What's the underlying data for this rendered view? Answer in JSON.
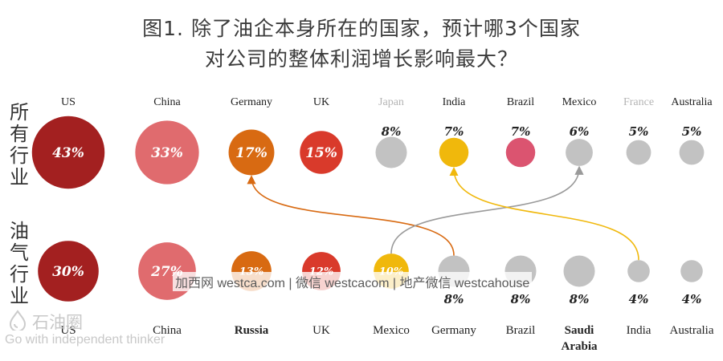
{
  "title": {
    "line1": "图1. 除了油企本身所在的国家，预计哪3个国家",
    "line2": "对公司的整体利润增长影响最大？"
  },
  "watermark_text": "加西网 westca.com | 微信 westcacom | 地产微信 westcahouse",
  "logo": {
    "name": "石油圈",
    "slogan": "Go with independent thinker"
  },
  "chart_data": {
    "type": "bubble",
    "rows": [
      {
        "label": "所有行业",
        "items": [
          {
            "country": "US",
            "value": 43,
            "show": "inside",
            "color": "#a32020",
            "label_color": "#222222"
          },
          {
            "country": "China",
            "value": 33,
            "show": "inside",
            "color": "#e06b6e",
            "label_color": "#222222"
          },
          {
            "country": "Germany",
            "value": 17,
            "show": "inside",
            "color": "#d86a12",
            "label_color": "#222222"
          },
          {
            "country": "UK",
            "value": 15,
            "show": "inside",
            "color": "#d93a2b",
            "label_color": "#222222"
          },
          {
            "country": "Japan",
            "value": 8,
            "show": "above",
            "color": "#c2c2c2",
            "label_color": "#b5b5b5"
          },
          {
            "country": "India",
            "value": 7,
            "show": "above",
            "color": "#f0b80c",
            "label_color": "#222222"
          },
          {
            "country": "Brazil",
            "value": 7,
            "show": "above",
            "color": "#db5470",
            "label_color": "#222222"
          },
          {
            "country": "Mexico",
            "value": 6,
            "show": "above",
            "color": "#c2c2c2",
            "label_color": "#222222"
          },
          {
            "country": "France",
            "value": 5,
            "show": "above",
            "color": "#c2c2c2",
            "label_color": "#b5b5b5"
          },
          {
            "country": "Australia",
            "value": 5,
            "show": "above",
            "color": "#c2c2c2",
            "label_color": "#222222"
          }
        ]
      },
      {
        "label": "油气行业",
        "items": [
          {
            "country": "US",
            "value": 30,
            "show": "inside",
            "color": "#a32020",
            "label_color": "#222222",
            "bold": false
          },
          {
            "country": "China",
            "value": 27,
            "show": "inside",
            "color": "#e06b6e",
            "label_color": "#222222",
            "bold": false
          },
          {
            "country": "Russia",
            "value": 13,
            "show": "inside",
            "color": "#d86a12",
            "label_color": "#222222",
            "bold": true
          },
          {
            "country": "UK",
            "value": 12,
            "show": "inside",
            "color": "#d93a2b",
            "label_color": "#222222",
            "bold": false
          },
          {
            "country": "Mexico",
            "value": 10,
            "show": "inside",
            "color": "#f0b80c",
            "label_color": "#222222",
            "bold": false
          },
          {
            "country": "Germany",
            "value": 8,
            "show": "below",
            "color": "#c2c2c2",
            "label_color": "#222222",
            "bold": false
          },
          {
            "country": "Brazil",
            "value": 8,
            "show": "below",
            "color": "#c2c2c2",
            "label_color": "#222222",
            "bold": false
          },
          {
            "country": "Saudi Arabia",
            "value": 8,
            "show": "below",
            "color": "#c2c2c2",
            "label_color": "#222222",
            "bold": true
          },
          {
            "country": "India",
            "value": 4,
            "show": "below",
            "color": "#c2c2c2",
            "label_color": "#222222",
            "bold": false
          },
          {
            "country": "Australia",
            "value": 4,
            "show": "below",
            "color": "#c2c2c2",
            "label_color": "#222222",
            "bold": false
          }
        ]
      }
    ],
    "arrows": [
      {
        "from_row": 1,
        "from_index": 5,
        "to_row": 0,
        "to_index": 2,
        "color": "#d86a12"
      },
      {
        "from_row": 1,
        "from_index": 4,
        "to_row": 0,
        "to_index": 7,
        "color": "#9a9a9a"
      },
      {
        "from_row": 1,
        "from_index": 8,
        "to_row": 0,
        "to_index": 5,
        "color": "#f0b80c"
      }
    ],
    "value_suffix": "%"
  }
}
